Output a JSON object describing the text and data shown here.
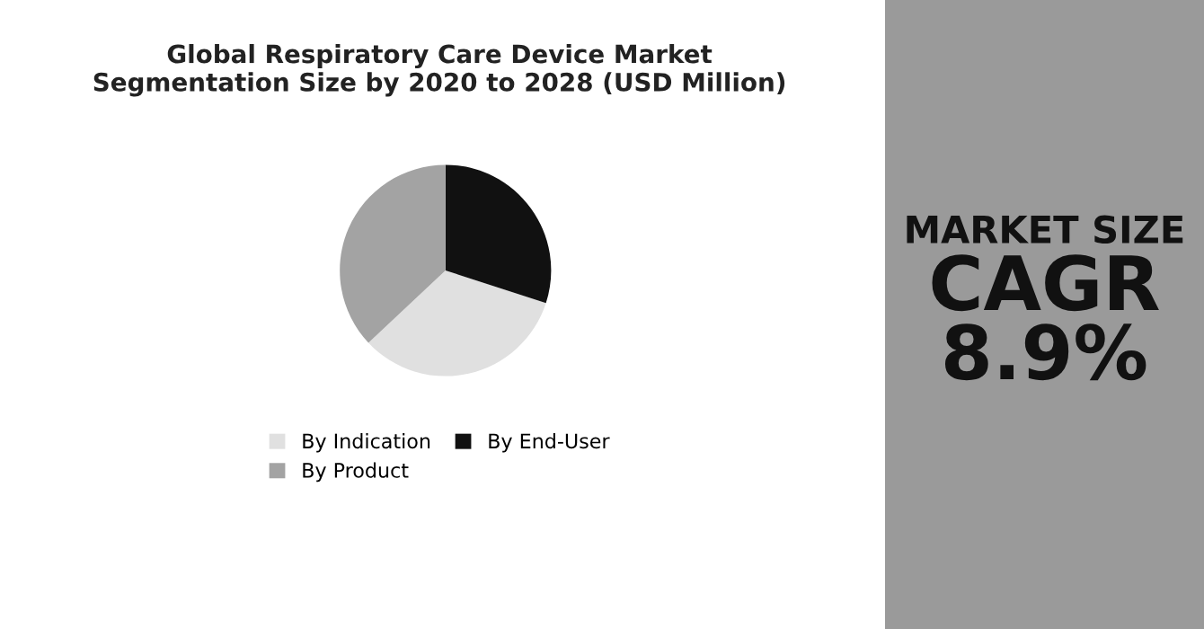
{
  "chart_data": [
    {
      "type": "pie",
      "title": "Global Respiratory Care Device Market\nSegmentation Size by 2020 to 2028 (USD Million)",
      "categories": [
        "By Indication",
        "By End-User",
        "By Product"
      ],
      "values": [
        33,
        30,
        37
      ],
      "colors": [
        "#e0e0e0",
        "#111111",
        "#a3a3a3"
      ],
      "legend": "bottom"
    },
    {
      "type": "other",
      "annotations": [
        "MARKET SIZE",
        "CAGR",
        "8.9%"
      ]
    }
  ]
}
